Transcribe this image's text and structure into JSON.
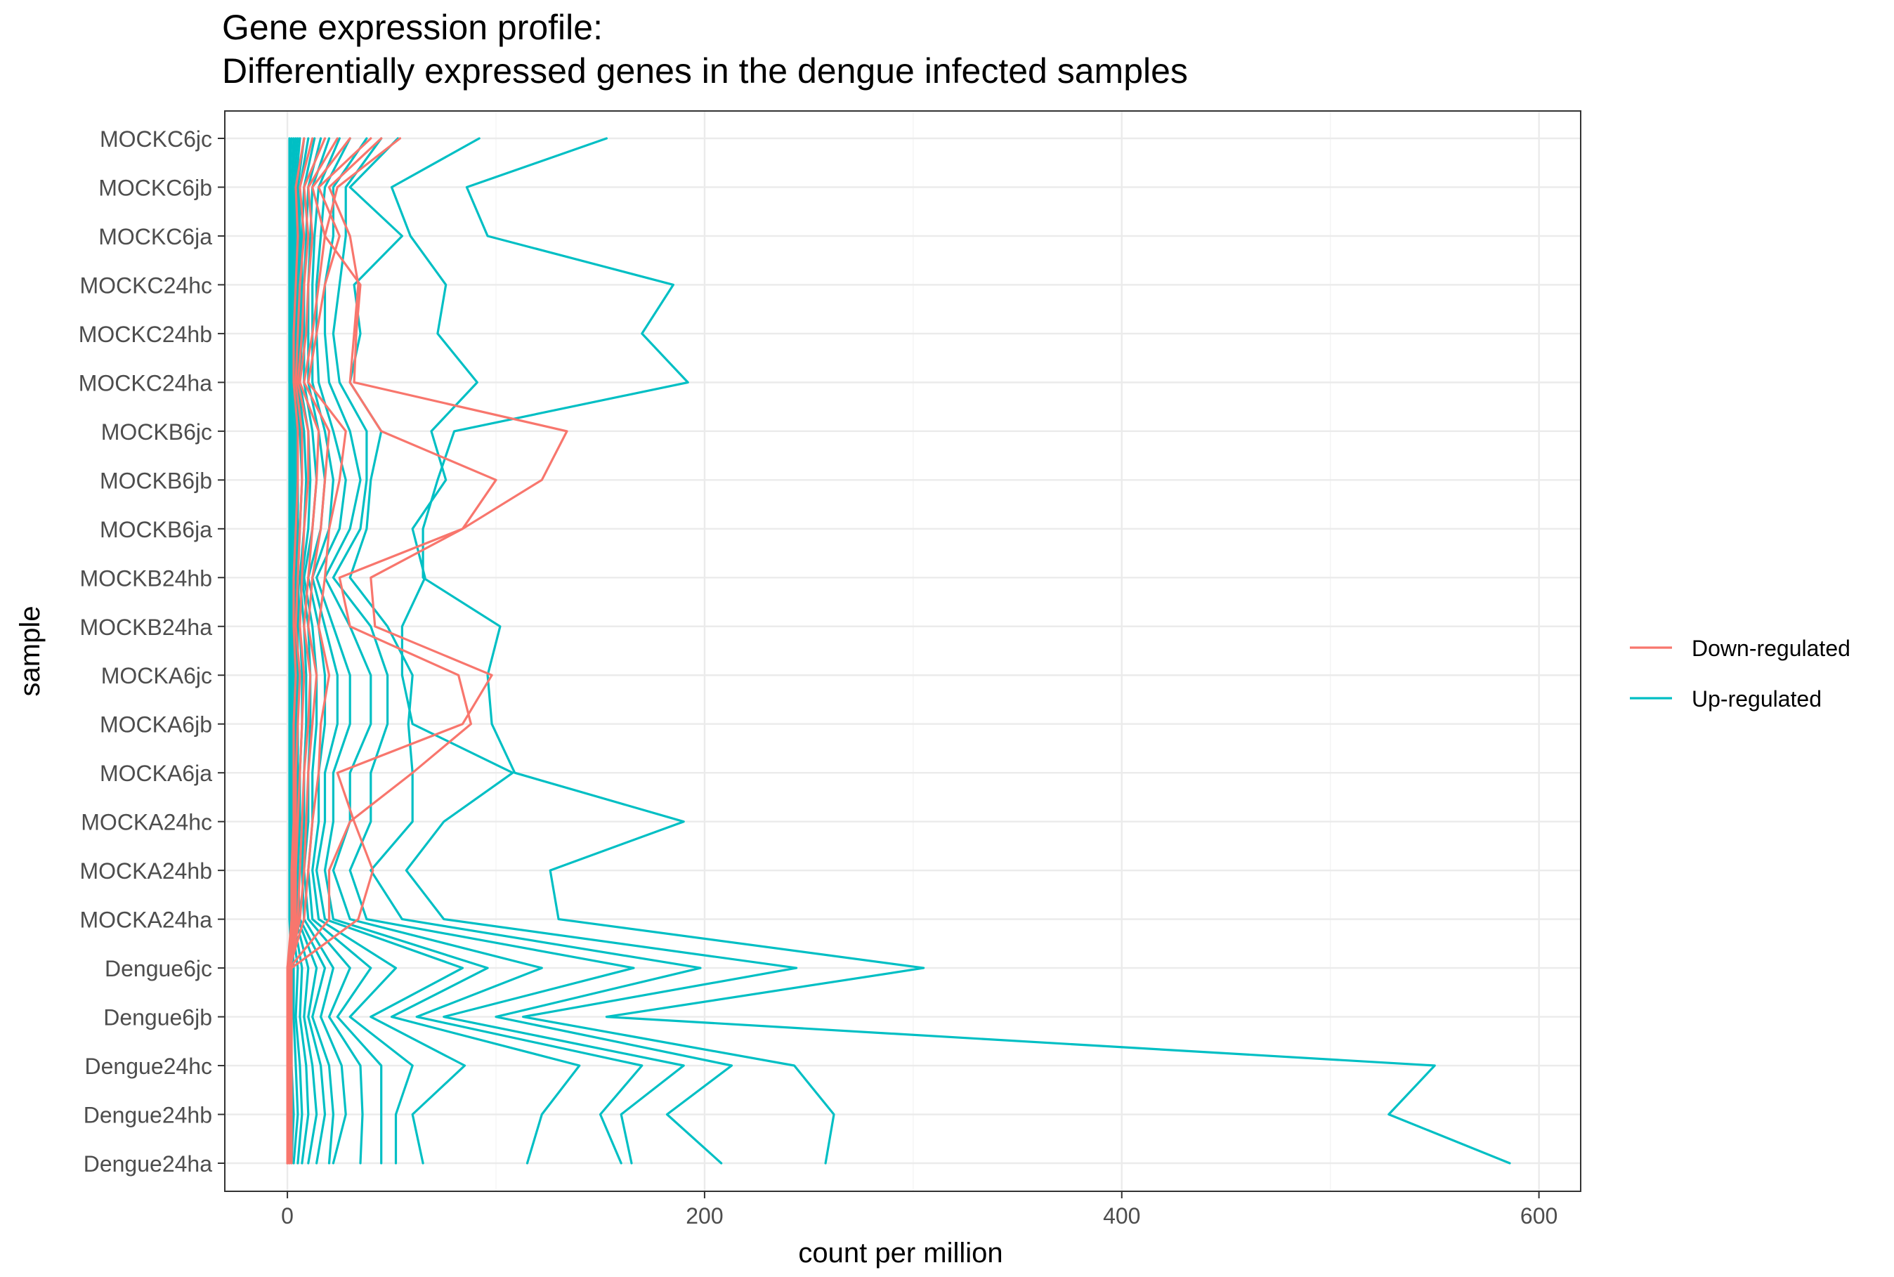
{
  "chart_data": {
    "type": "line",
    "orientation": "horizontal",
    "title": "Gene expression profile:",
    "subtitle": "Differentially expressed genes in the dengue infected samples",
    "xlabel": "count per million",
    "ylabel": "sample",
    "xlim": [
      -30,
      620
    ],
    "x_ticks": [
      0,
      200,
      400,
      600
    ],
    "x_minor_ticks": [
      100,
      300,
      500
    ],
    "categories": [
      "MOCKC6jc",
      "MOCKC6jb",
      "MOCKC6ja",
      "MOCKC24hc",
      "MOCKC24hb",
      "MOCKC24ha",
      "MOCKB6jc",
      "MOCKB6jb",
      "MOCKB6ja",
      "MOCKB24hb",
      "MOCKB24ha",
      "MOCKA6jc",
      "MOCKA6jb",
      "MOCKA6ja",
      "MOCKA24hc",
      "MOCKA24hb",
      "MOCKA24ha",
      "Dengue6jc",
      "Dengue6jb",
      "Dengue24hc",
      "Dengue24hb",
      "Dengue24ha"
    ],
    "grid": true,
    "legend_position": "right",
    "legend": [
      {
        "label": "Down-regulated",
        "color": "#f8766d"
      },
      {
        "label": "Up-regulated",
        "color": "#00bfc4"
      }
    ],
    "series": [
      {
        "group": "Down-regulated",
        "values": [
          54,
          24,
          18,
          35,
          33,
          32,
          134,
          122,
          84,
          40,
          42,
          98,
          84,
          24,
          32,
          41,
          34,
          2,
          2,
          2,
          2,
          2
        ]
      },
      {
        "group": "Down-regulated",
        "values": [
          45,
          20,
          30,
          34,
          32,
          30,
          45,
          100,
          84,
          25,
          30,
          82,
          88,
          60,
          30,
          20,
          20,
          1,
          1,
          1,
          1,
          1
        ]
      },
      {
        "group": "Down-regulated",
        "values": [
          40,
          15,
          25,
          18,
          14,
          10,
          28,
          25,
          20,
          18,
          15,
          20,
          16,
          15,
          12,
          10,
          8,
          1,
          1,
          1,
          1,
          1
        ]
      },
      {
        "group": "Down-regulated",
        "values": [
          30,
          12,
          18,
          15,
          12,
          8,
          20,
          18,
          16,
          12,
          10,
          14,
          12,
          10,
          9,
          8,
          6,
          1,
          1,
          1,
          1,
          1
        ]
      },
      {
        "group": "Down-regulated",
        "values": [
          24,
          10,
          12,
          10,
          9,
          6,
          15,
          14,
          12,
          10,
          8,
          11,
          10,
          8,
          7,
          6,
          5,
          0,
          0,
          0,
          0,
          0
        ]
      },
      {
        "group": "Down-regulated",
        "values": [
          18,
          8,
          10,
          8,
          7,
          5,
          10,
          10,
          8,
          7,
          6,
          8,
          7,
          6,
          5,
          4,
          4,
          0,
          0,
          0,
          0,
          0
        ]
      },
      {
        "group": "Down-regulated",
        "values": [
          12,
          6,
          8,
          6,
          5,
          4,
          7,
          7,
          6,
          5,
          4,
          6,
          5,
          4,
          4,
          3,
          3,
          0,
          0,
          0,
          0,
          0
        ]
      },
      {
        "group": "Down-regulated",
        "values": [
          8,
          4,
          5,
          4,
          3,
          3,
          5,
          5,
          4,
          3,
          3,
          4,
          3,
          3,
          3,
          2,
          2,
          0,
          0,
          0,
          0,
          0
        ]
      },
      {
        "group": "Up-regulated",
        "values": [
          153,
          86,
          96,
          185,
          170,
          192,
          80,
          72,
          65,
          65,
          102,
          96,
          98,
          109,
          190,
          126,
          130,
          305,
          153,
          550,
          528,
          586
        ]
      },
      {
        "group": "Up-regulated",
        "values": [
          92,
          50,
          59,
          76,
          72,
          91,
          69,
          76,
          60,
          66,
          55,
          55,
          60,
          108,
          75,
          57,
          75,
          244,
          113,
          243,
          262,
          258
        ]
      },
      {
        "group": "Up-regulated",
        "values": [
          53,
          30,
          55,
          32,
          35,
          30,
          45,
          40,
          38,
          30,
          48,
          60,
          58,
          60,
          60,
          40,
          55,
          198,
          100,
          213,
          182,
          208
        ]
      },
      {
        "group": "Up-regulated",
        "values": [
          45,
          28,
          28,
          25,
          22,
          25,
          38,
          38,
          35,
          22,
          40,
          48,
          48,
          40,
          40,
          30,
          38,
          166,
          75,
          190,
          160,
          165
        ]
      },
      {
        "group": "Up-regulated",
        "values": [
          38,
          22,
          22,
          18,
          18,
          20,
          30,
          35,
          30,
          18,
          30,
          40,
          40,
          30,
          30,
          22,
          30,
          122,
          62,
          170,
          150,
          160
        ]
      },
      {
        "group": "Up-regulated",
        "values": [
          30,
          18,
          16,
          14,
          14,
          15,
          22,
          28,
          25,
          14,
          22,
          30,
          30,
          22,
          22,
          18,
          22,
          96,
          50,
          140,
          122,
          115
        ]
      },
      {
        "group": "Up-regulated",
        "values": [
          25,
          15,
          13,
          12,
          12,
          12,
          18,
          22,
          20,
          12,
          18,
          24,
          24,
          18,
          18,
          14,
          18,
          84,
          40,
          85,
          60,
          65
        ]
      },
      {
        "group": "Up-regulated",
        "values": [
          20,
          12,
          11,
          10,
          10,
          10,
          15,
          18,
          16,
          10,
          15,
          18,
          18,
          15,
          15,
          12,
          15,
          52,
          30,
          60,
          52,
          52
        ]
      },
      {
        "group": "Up-regulated",
        "values": [
          16,
          10,
          9,
          8,
          8,
          8,
          12,
          14,
          12,
          8,
          12,
          14,
          14,
          12,
          12,
          10,
          12,
          40,
          24,
          45,
          45,
          45
        ]
      },
      {
        "group": "Up-regulated",
        "values": [
          13,
          8,
          7,
          7,
          7,
          6,
          10,
          11,
          10,
          7,
          10,
          11,
          11,
          10,
          10,
          8,
          10,
          30,
          20,
          35,
          36,
          35
        ]
      },
      {
        "group": "Up-regulated",
        "values": [
          10,
          6,
          6,
          6,
          6,
          5,
          8,
          9,
          8,
          6,
          8,
          9,
          9,
          8,
          8,
          7,
          8,
          22,
          16,
          26,
          28,
          22
        ]
      },
      {
        "group": "Up-regulated",
        "values": [
          8,
          5,
          5,
          5,
          5,
          4,
          6,
          7,
          6,
          5,
          6,
          7,
          7,
          6,
          6,
          5,
          6,
          18,
          12,
          20,
          22,
          20
        ]
      },
      {
        "group": "Up-regulated",
        "values": [
          6,
          4,
          4,
          4,
          4,
          3,
          5,
          5,
          5,
          4,
          5,
          5,
          5,
          5,
          5,
          4,
          5,
          14,
          10,
          16,
          18,
          14
        ]
      },
      {
        "group": "Up-regulated",
        "values": [
          5,
          3,
          3,
          3,
          3,
          3,
          4,
          4,
          4,
          3,
          4,
          4,
          4,
          4,
          4,
          3,
          4,
          10,
          8,
          12,
          14,
          10
        ]
      },
      {
        "group": "Up-regulated",
        "values": [
          4,
          2,
          2,
          2,
          2,
          2,
          3,
          3,
          3,
          2,
          3,
          3,
          3,
          3,
          3,
          2,
          3,
          7,
          6,
          9,
          10,
          7
        ]
      },
      {
        "group": "Up-regulated",
        "values": [
          3,
          2,
          2,
          2,
          2,
          2,
          2,
          2,
          2,
          2,
          2,
          2,
          2,
          2,
          2,
          2,
          2,
          5,
          4,
          6,
          7,
          5
        ]
      },
      {
        "group": "Up-regulated",
        "values": [
          2,
          1,
          1,
          1,
          1,
          1,
          2,
          2,
          2,
          1,
          2,
          2,
          2,
          2,
          2,
          1,
          2,
          3,
          3,
          4,
          5,
          3
        ]
      },
      {
        "group": "Up-regulated",
        "values": [
          1,
          1,
          1,
          1,
          1,
          1,
          1,
          1,
          1,
          1,
          1,
          1,
          1,
          1,
          1,
          1,
          1,
          2,
          2,
          2,
          3,
          2
        ]
      }
    ]
  }
}
